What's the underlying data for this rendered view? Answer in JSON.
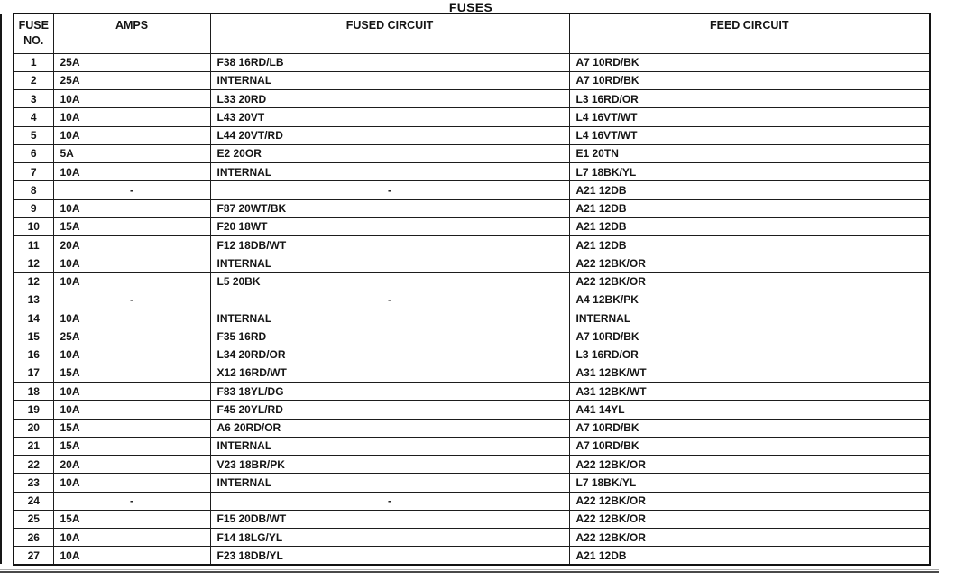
{
  "title": "FUSES",
  "table": {
    "headers": [
      "FUSE NO.",
      "AMPS",
      "FUSED CIRCUIT",
      "FEED CIRCUIT"
    ],
    "rows": [
      {
        "no": "1",
        "amps": "25A",
        "fused": "F38 16RD/LB",
        "feed": "A7 10RD/BK"
      },
      {
        "no": "2",
        "amps": "25A",
        "fused": "INTERNAL",
        "feed": "A7 10RD/BK"
      },
      {
        "no": "3",
        "amps": "10A",
        "fused": "L33 20RD",
        "feed": "L3 16RD/OR"
      },
      {
        "no": "4",
        "amps": "10A",
        "fused": "L43 20VT",
        "feed": "L4 16VT/WT"
      },
      {
        "no": "5",
        "amps": "10A",
        "fused": "L44 20VT/RD",
        "feed": "L4 16VT/WT"
      },
      {
        "no": "6",
        "amps": "5A",
        "fused": "E2 20OR",
        "feed": "E1 20TN"
      },
      {
        "no": "7",
        "amps": "10A",
        "fused": "INTERNAL",
        "feed": "L7 18BK/YL"
      },
      {
        "no": "8",
        "amps": "-",
        "fused": "-",
        "feed": "A21 12DB"
      },
      {
        "no": "9",
        "amps": "10A",
        "fused": "F87 20WT/BK",
        "feed": "A21 12DB"
      },
      {
        "no": "10",
        "amps": "15A",
        "fused": "F20 18WT",
        "feed": "A21 12DB"
      },
      {
        "no": "11",
        "amps": "20A",
        "fused": "F12 18DB/WT",
        "feed": "A21 12DB"
      },
      {
        "no": "12",
        "amps": "10A",
        "fused": "INTERNAL",
        "feed": "A22 12BK/OR"
      },
      {
        "no": "12",
        "amps": "10A",
        "fused": "L5 20BK",
        "feed": "A22 12BK/OR"
      },
      {
        "no": "13",
        "amps": "-",
        "fused": "-",
        "feed": "A4 12BK/PK"
      },
      {
        "no": "14",
        "amps": "10A",
        "fused": "INTERNAL",
        "feed": "INTERNAL"
      },
      {
        "no": "15",
        "amps": "25A",
        "fused": "F35 16RD",
        "feed": "A7 10RD/BK"
      },
      {
        "no": "16",
        "amps": "10A",
        "fused": "L34 20RD/OR",
        "feed": "L3 16RD/OR"
      },
      {
        "no": "17",
        "amps": "15A",
        "fused": "X12 16RD/WT",
        "feed": "A31 12BK/WT"
      },
      {
        "no": "18",
        "amps": "10A",
        "fused": "F83 18YL/DG",
        "feed": "A31 12BK/WT"
      },
      {
        "no": "19",
        "amps": "10A",
        "fused": "F45 20YL/RD",
        "feed": "A41 14YL"
      },
      {
        "no": "20",
        "amps": "15A",
        "fused": "A6 20RD/OR",
        "feed": "A7 10RD/BK"
      },
      {
        "no": "21",
        "amps": "15A",
        "fused": "INTERNAL",
        "feed": "A7 10RD/BK"
      },
      {
        "no": "22",
        "amps": "20A",
        "fused": "V23 18BR/PK",
        "feed": "A22 12BK/OR"
      },
      {
        "no": "23",
        "amps": "10A",
        "fused": "INTERNAL",
        "feed": "L7 18BK/YL"
      },
      {
        "no": "24",
        "amps": "-",
        "fused": "-",
        "feed": "A22 12BK/OR"
      },
      {
        "no": "25",
        "amps": "15A",
        "fused": "F15 20DB/WT",
        "feed": "A22 12BK/OR"
      },
      {
        "no": "26",
        "amps": "10A",
        "fused": "F14 18LG/YL",
        "feed": "A22 12BK/OR"
      },
      {
        "no": "27",
        "amps": "10A",
        "fused": "F23 18DB/YL",
        "feed": "A21 12DB"
      }
    ]
  }
}
